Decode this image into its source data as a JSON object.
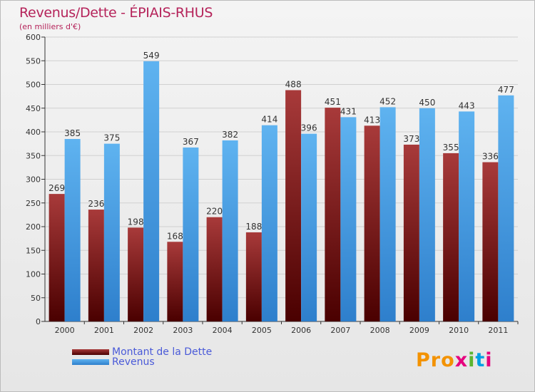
{
  "title": "Revenus/Dette - ÉPIAIS-RHUS",
  "subtitle": "(en milliers d'€)",
  "logo": "Proxiti",
  "colors": {
    "title": "#b5235a",
    "dette": "#7a1a1a",
    "revenus": "#4ea3e8",
    "legend_text": "#4a5ad8"
  },
  "chart_data": {
    "type": "bar",
    "title": "Revenus/Dette - ÉPIAIS-RHUS",
    "ylabel": "(en milliers d'€)",
    "ylim": [
      0,
      600
    ],
    "yticks": [
      0,
      50,
      100,
      150,
      200,
      250,
      300,
      350,
      400,
      450,
      500,
      550,
      600
    ],
    "grid": true,
    "legend_position": "bottom-left",
    "categories": [
      "2000",
      "2001",
      "2002",
      "2003",
      "2004",
      "2005",
      "2006",
      "2007",
      "2008",
      "2009",
      "2010",
      "2011"
    ],
    "series": [
      {
        "name": "Montant de la Dette",
        "color": "#7a1a1a",
        "values": [
          269,
          236,
          198,
          168,
          220,
          188,
          488,
          451,
          413,
          373,
          355,
          336
        ]
      },
      {
        "name": "Revenus",
        "color": "#4ea3e8",
        "values": [
          385,
          375,
          549,
          367,
          382,
          414,
          396,
          431,
          452,
          450,
          443,
          477
        ]
      }
    ]
  }
}
